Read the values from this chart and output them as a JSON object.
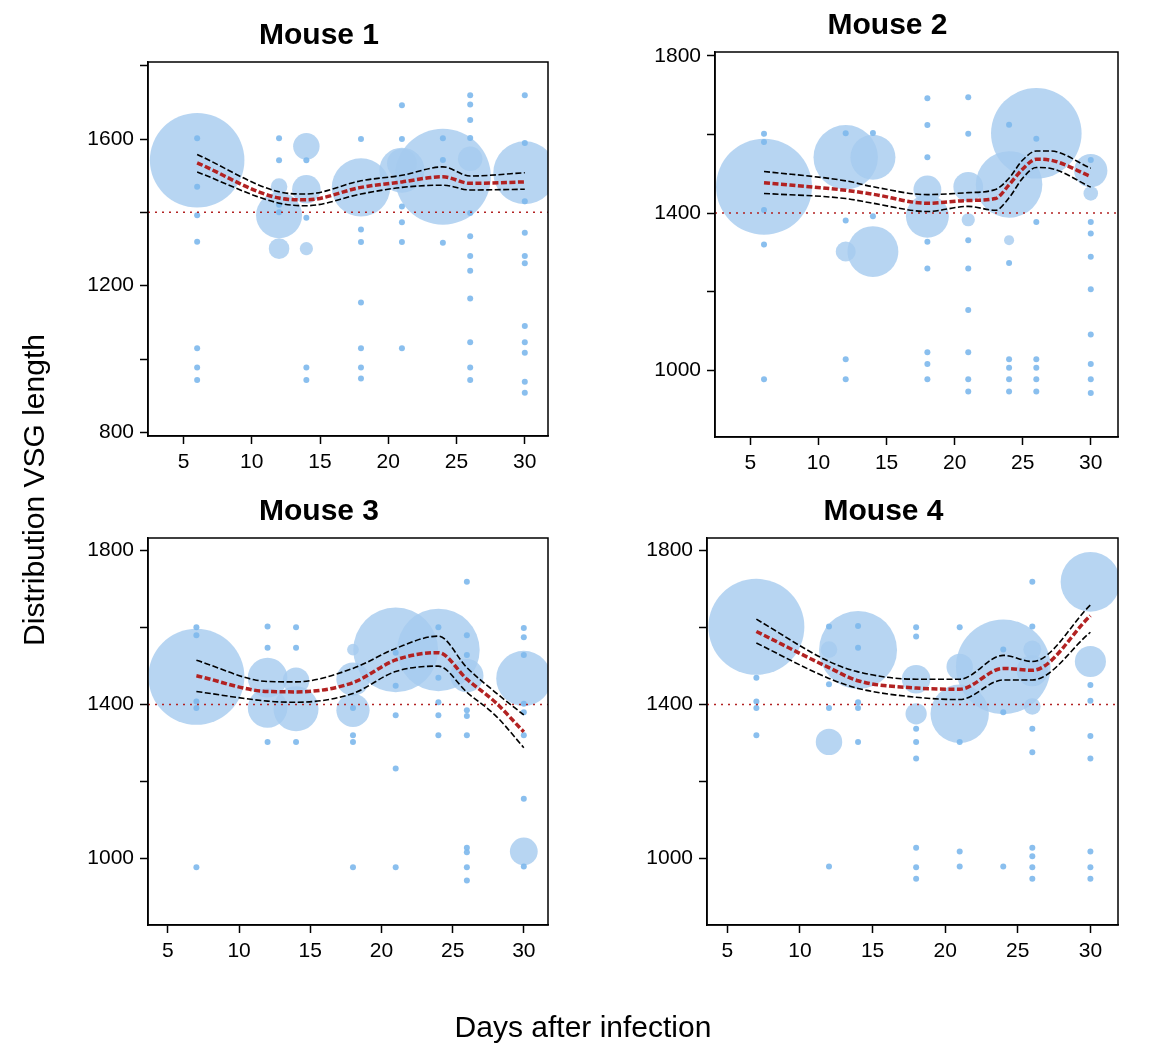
{
  "chart_data": [
    {
      "type": "bubble",
      "title": "Mouse 1",
      "ylabel": "Distribution VSG length",
      "xlim": [
        2.4,
        31.7
      ],
      "ylim": [
        790,
        1810
      ],
      "xticks": [
        5,
        10,
        15,
        20,
        25,
        30
      ],
      "yticks": [
        800,
        {
          "value": 1000,
          "label": null
        },
        1200,
        {
          "value": 1400,
          "label": null
        },
        1600,
        {
          "value": 1800,
          "label": null
        }
      ],
      "series": [
        {
          "color": "#a5cbef",
          "x": [
            6,
            12,
            12,
            12,
            14,
            14,
            14,
            18,
            21,
            21,
            24,
            26,
            30
          ],
          "values": [
            1542,
            1392,
            1301,
            1470,
            1580,
            1463,
            1301,
            1468,
            1515,
            1533,
            1497,
            1546,
            1508
          ],
          "sizes": [
            0.97,
            0.23,
            0.046,
            0.03,
            0.076,
            0.088,
            0.019,
            0.37,
            0.22,
            0.096,
            1,
            0.065,
            0.43
          ]
        },
        {
          "type": "scatter",
          "marker": "circle",
          "color": "#7db8ec",
          "x": [
            6,
            6,
            6,
            6,
            6,
            6,
            6,
            12,
            12,
            12,
            12,
            14,
            14,
            14,
            14,
            18,
            18,
            18,
            18,
            18,
            18,
            18,
            21,
            21,
            21,
            21,
            21,
            21,
            24,
            24,
            24,
            26,
            26,
            26,
            26,
            26,
            26,
            26,
            26,
            26,
            26,
            26,
            26,
            30,
            30,
            30,
            30,
            30,
            30,
            30,
            30,
            30,
            30,
            30
          ],
          "values": [
            1602,
            1470,
            1392,
            1320,
            1029,
            977,
            943,
            1602,
            1542,
            1421,
            1400,
            1542,
            1385,
            977,
            943,
            1600,
            1353,
            1319,
            1154,
            1029,
            977,
            947,
            1692,
            1600,
            1416,
            1373,
            1319,
            1029,
            1602,
            1543,
            1317,
            1719,
            1694,
            1652,
            1603,
            1398,
            1335,
            1281,
            1241,
            1165,
            1046,
            977,
            943,
            1719,
            1589,
            1430,
            1344,
            1281,
            1261,
            1090,
            1046,
            1017,
            938,
            908
          ]
        },
        {
          "type": "line",
          "color": "#000000",
          "line_style": "dashed",
          "x": [
            6,
            12,
            14,
            18,
            21,
            24,
            26,
            30
          ],
          "values": [
            1558,
            1456,
            1450,
            1486,
            1501,
            1524,
            1499,
            1508
          ]
        },
        {
          "type": "line",
          "color": "#000000",
          "line_style": "dashed",
          "x": [
            6,
            12,
            14,
            18,
            21,
            24,
            26,
            30
          ],
          "values": [
            1510,
            1425,
            1418,
            1450,
            1468,
            1474,
            1461,
            1463
          ]
        },
        {
          "type": "line",
          "color": "#b22222",
          "line_style": "dashed",
          "x": [
            6,
            12,
            14,
            18,
            21,
            24,
            26,
            30
          ],
          "values": [
            1535,
            1439,
            1434,
            1468,
            1483,
            1497,
            1479,
            1483
          ]
        }
      ],
      "ref_lines": [
        {
          "axis": "y",
          "value": 1400,
          "color": "#b22222",
          "line_style": "dotted"
        }
      ]
    },
    {
      "type": "bubble",
      "title": "Mouse 2",
      "xlim": [
        2.4,
        32
      ],
      "ylim": [
        830,
        1810
      ],
      "xticks": [
        5,
        10,
        15,
        20,
        25,
        30
      ],
      "yticks": [
        1000,
        {
          "value": 1200,
          "label": null
        },
        1400,
        {
          "value": 1600,
          "label": null
        },
        1800
      ],
      "series": [
        {
          "color": "#a5cbef",
          "x": [
            6,
            12,
            12,
            14,
            14,
            18,
            18,
            21,
            21,
            24,
            24,
            26,
            30,
            30
          ],
          "values": [
            1467,
            1542,
            1302,
            1542,
            1302,
            1392,
            1460,
            1467,
            1383,
            1473,
            1331,
            1603,
            1508,
            1450
          ],
          "sizes": [
            1,
            0.45,
            0.043,
            0.22,
            0.28,
            0.2,
            0.084,
            0.096,
            0.019,
            0.48,
            0.011,
            0.89,
            0.12,
            0.023
          ]
        },
        {
          "type": "scatter",
          "marker": "circle",
          "color": "#7db8ec",
          "x": [
            6,
            6,
            6,
            6,
            6,
            12,
            12,
            12,
            12,
            14,
            14,
            18,
            18,
            18,
            18,
            18,
            18,
            18,
            18,
            21,
            21,
            21,
            21,
            21,
            21,
            21,
            21,
            24,
            24,
            24,
            24,
            24,
            24,
            26,
            26,
            26,
            26,
            26,
            26,
            30,
            30,
            30,
            30,
            30,
            30,
            30,
            30,
            30
          ],
          "values": [
            1602,
            1581,
            1408,
            1320,
            977,
            1603,
            1381,
            1028,
            977,
            1604,
            1392,
            1692,
            1624,
            1542,
            1327,
            1259,
            1046,
            1016,
            977,
            1695,
            1602,
            1331,
            1259,
            1153,
            1046,
            977,
            946,
            1625,
            1273,
            1028,
            1006,
            977,
            946,
            1589,
            1377,
            1028,
            1006,
            977,
            946,
            1535,
            1377,
            1348,
            1289,
            1206,
            1091,
            1016,
            977,
            942
          ]
        },
        {
          "type": "line",
          "color": "#000000",
          "line_style": "dashed",
          "x": [
            6,
            12,
            14,
            18,
            21,
            23,
            24,
            25,
            26,
            27,
            30
          ],
          "values": [
            1506,
            1482,
            1467,
            1447,
            1452,
            1460,
            1489,
            1535,
            1558,
            1558,
            1514
          ]
        },
        {
          "type": "line",
          "color": "#000000",
          "line_style": "dashed",
          "x": [
            6,
            12,
            14,
            18,
            21,
            23,
            24,
            25,
            26,
            27,
            30
          ],
          "values": [
            1450,
            1437,
            1425,
            1404,
            1417,
            1407,
            1439,
            1489,
            1516,
            1514,
            1466
          ]
        },
        {
          "type": "line",
          "color": "#b22222",
          "line_style": "dashed",
          "x": [
            6,
            12,
            14,
            18,
            21,
            23,
            24,
            25,
            26,
            27,
            30
          ],
          "values": [
            1477,
            1458,
            1448,
            1425,
            1432,
            1437,
            1472,
            1512,
            1537,
            1535,
            1493
          ]
        }
      ],
      "ref_lines": [
        {
          "axis": "y",
          "value": 1400,
          "color": "#b22222",
          "line_style": "dotted"
        }
      ]
    },
    {
      "type": "bubble",
      "title": "Mouse 3",
      "xlabel": "Days after infection",
      "xlim": [
        3.6,
        31.7
      ],
      "ylim": [
        827,
        1833
      ],
      "xticks": [
        5,
        10,
        15,
        20,
        25,
        30
      ],
      "yticks": [
        1000,
        {
          "value": 1200,
          "label": null
        },
        1400,
        {
          "value": 1600,
          "label": null
        },
        1800
      ],
      "series": [
        {
          "color": "#a5cbef",
          "x": [
            7,
            12,
            12,
            14,
            14,
            18,
            18,
            18,
            21,
            24,
            26,
            30,
            30
          ],
          "values": [
            1472,
            1470,
            1391,
            1462,
            1389,
            1466,
            1385,
            1543,
            1542,
            1542,
            1475,
            1468,
            1018
          ],
          "sizes": [
            1,
            0.17,
            0.17,
            0.076,
            0.22,
            0.12,
            0.12,
            0.015,
            0.78,
            0.74,
            0.12,
            0.33,
            0.084
          ]
        },
        {
          "type": "scatter",
          "marker": "circle",
          "color": "#7db8ec",
          "x": [
            7,
            7,
            7,
            7,
            7,
            12,
            12,
            12,
            14,
            14,
            14,
            18,
            18,
            18,
            18,
            21,
            21,
            21,
            21,
            21,
            24,
            24,
            24,
            24,
            24,
            26,
            26,
            26,
            26,
            26,
            26,
            26,
            26,
            26,
            26,
            30,
            30,
            30,
            30,
            30,
            30,
            30,
            30
          ],
          "values": [
            1601,
            1580,
            1408,
            1391,
            977,
            1603,
            1548,
            1303,
            1601,
            1548,
            1303,
            1391,
            1320,
            1303,
            977,
            1535,
            1449,
            1372,
            1234,
            977,
            1601,
            1470,
            1406,
            1372,
            1320,
            1719,
            1580,
            1529,
            1385,
            1370,
            1320,
            1028,
            1016,
            977,
            943,
            1599,
            1575,
            1529,
            1402,
            1380,
            1320,
            1155,
            979
          ]
        },
        {
          "type": "line",
          "color": "#000000",
          "line_style": "dashed",
          "x": [
            7,
            12,
            14,
            18,
            21,
            24,
            26,
            28,
            30
          ],
          "values": [
            1515,
            1460,
            1459,
            1494,
            1546,
            1578,
            1496,
            1432,
            1373
          ]
        },
        {
          "type": "line",
          "color": "#000000",
          "line_style": "dashed",
          "x": [
            7,
            12,
            14,
            18,
            21,
            24,
            26,
            28,
            30
          ],
          "values": [
            1434,
            1409,
            1406,
            1429,
            1486,
            1500,
            1432,
            1372,
            1288
          ]
        },
        {
          "type": "line",
          "color": "#b22222",
          "line_style": "dashed",
          "x": [
            7,
            12,
            14,
            18,
            21,
            24,
            26,
            28,
            30
          ],
          "values": [
            1475,
            1434,
            1433,
            1457,
            1516,
            1535,
            1466,
            1406,
            1329
          ]
        }
      ],
      "ref_lines": [
        {
          "axis": "y",
          "value": 1400,
          "color": "#b22222",
          "line_style": "dotted"
        }
      ]
    },
    {
      "type": "bubble",
      "title": "Mouse 4",
      "xlim": [
        3.6,
        31.9
      ],
      "ylim": [
        827,
        1833
      ],
      "xticks": [
        5,
        10,
        15,
        20,
        25,
        30
      ],
      "yticks": [
        1000,
        {
          "value": 1200,
          "label": null
        },
        1400,
        {
          "value": 1600,
          "label": null
        },
        1800
      ],
      "series": [
        {
          "color": "#a5cbef",
          "x": [
            7,
            12,
            12,
            14,
            18,
            18,
            21,
            21,
            24,
            26,
            26,
            26,
            30,
            30
          ],
          "values": [
            1602,
            1543,
            1303,
            1542,
            1466,
            1376,
            1498,
            1376,
            1498,
            1543,
            1488,
            1395,
            1719,
            1512
          ],
          "sizes": [
            1,
            0.03,
            0.076,
            0.66,
            0.088,
            0.049,
            0.076,
            0.37,
            0.97,
            0.035,
            0.105,
            0.03,
            0.385,
            0.105
          ]
        },
        {
          "type": "scatter",
          "marker": "circle",
          "color": "#7db8ec",
          "x": [
            7,
            7,
            7,
            7,
            12,
            12,
            12,
            12,
            14,
            14,
            14,
            14,
            14,
            18,
            18,
            18,
            18,
            18,
            18,
            18,
            18,
            21,
            21,
            21,
            21,
            24,
            24,
            24,
            26,
            26,
            26,
            26,
            26,
            26,
            26,
            26,
            30,
            30,
            30,
            30,
            30,
            30,
            30
          ],
          "values": [
            1470,
            1408,
            1391,
            1320,
            1603,
            1453,
            1391,
            979,
            1604,
            1548,
            1406,
            1391,
            1303,
            1601,
            1577,
            1337,
            1303,
            1260,
            1028,
            977,
            947,
            1601,
            1303,
            1018,
            979,
            1543,
            1380,
            979,
            1719,
            1603,
            1337,
            1276,
            1028,
            1006,
            977,
            947,
            1451,
            1410,
            1318,
            1260,
            1018,
            977,
            947
          ]
        },
        {
          "type": "line",
          "color": "#000000",
          "line_style": "dashed",
          "x": [
            7,
            12,
            14,
            18,
            21,
            24,
            26,
            30
          ],
          "values": [
            1622,
            1512,
            1485,
            1466,
            1466,
            1528,
            1512,
            1659
          ]
        },
        {
          "type": "line",
          "color": "#000000",
          "line_style": "dashed",
          "x": [
            7,
            12,
            14,
            18,
            21,
            24,
            26,
            30
          ],
          "values": [
            1560,
            1468,
            1442,
            1419,
            1413,
            1464,
            1464,
            1588
          ]
        },
        {
          "type": "line",
          "color": "#b22222",
          "line_style": "dashed",
          "x": [
            7,
            12,
            14,
            18,
            21,
            24,
            26,
            30
          ],
          "values": [
            1590,
            1496,
            1462,
            1443,
            1440,
            1494,
            1489,
            1631
          ]
        }
      ],
      "ref_lines": [
        {
          "axis": "y",
          "value": 1400,
          "color": "#b22222",
          "line_style": "dotted"
        }
      ]
    }
  ]
}
